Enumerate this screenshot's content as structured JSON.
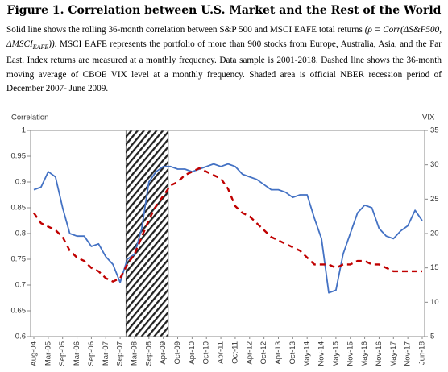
{
  "title": "Figure 1.  Correlation between U.S. Market and the Rest of the World",
  "caption": [
    "Solid line shows the rolling 36-month correlation between S&P 500 and MSCI EAFE total returns ",
    "(ρ = Corr(ΔS&P500, ΔMSCI",
    "EAFE",
    "))",
    ".  MSCI EAFE represents the portfolio of more than 900 stocks from Europe, Australia, Asia, and the Far East. Index returns are measured at a monthly frequency. Data sample is 2001-2018.  Dashed line shows the 36-month moving average of CBOE VIX level at a monthly frequency. Shaded area is official NBER recession period of December 2007- June 2009."
  ],
  "chart_data": {
    "type": "line",
    "ylabel": "Correlation",
    "y2label": "VIX",
    "categories": [
      "Aug-04",
      null,
      "Mar-05",
      null,
      "Sep-05",
      null,
      "Mar-06",
      null,
      "Sep-06",
      null,
      "Mar-07",
      null,
      "Sep-07",
      null,
      "Mar-08",
      null,
      "Sep-08",
      null,
      "Apr-09",
      null,
      "Oct-09",
      null,
      "Apr-10",
      null,
      "Oct-10",
      null,
      "Apr-11",
      null,
      "Oct-11",
      null,
      "Apr-12",
      null,
      "Oct-12",
      null,
      "Apr-13",
      null,
      "Oct-13",
      null,
      "May-14",
      null,
      "Nov-14",
      null,
      "May-15",
      null,
      "Nov-15",
      null,
      "May-16",
      null,
      "Nov-16",
      null,
      "May-17",
      null,
      "Nov-17",
      null,
      "Jun-18"
    ],
    "series": [
      {
        "color": "#4472c4",
        "axis": "y",
        "dashed": false,
        "values": [
          0.885,
          0.89,
          0.92,
          0.91,
          0.85,
          0.8,
          0.795,
          0.795,
          0.775,
          0.78,
          0.755,
          0.74,
          0.705,
          0.75,
          0.76,
          0.81,
          0.9,
          0.92,
          0.93,
          0.93,
          0.925,
          0.925,
          0.92,
          0.925,
          0.93,
          0.935,
          0.93,
          0.935,
          0.93,
          0.915,
          0.91,
          0.905,
          0.895,
          0.885,
          0.885,
          0.88,
          0.87,
          0.875,
          0.875,
          0.83,
          0.79,
          0.685,
          0.69,
          0.76,
          0.8,
          0.84,
          0.855,
          0.85,
          0.81,
          0.795,
          0.79,
          0.805,
          0.815,
          0.845,
          0.825
        ]
      },
      {
        "color": "#c00000",
        "axis": "y2",
        "dashed": true,
        "values": [
          23,
          21.5,
          21,
          20.5,
          19.5,
          17.5,
          16.5,
          16,
          15,
          14.5,
          13.5,
          13,
          13.5,
          15.5,
          17,
          19.5,
          22,
          24,
          25.5,
          27,
          27.5,
          28.5,
          29,
          29.5,
          29,
          28.5,
          28,
          26.5,
          24,
          23,
          22.5,
          21.5,
          20.5,
          19.5,
          19,
          18.5,
          18,
          17.5,
          16.5,
          15.5,
          15.5,
          15.5,
          15,
          15.5,
          15.5,
          16,
          16,
          15.5,
          15.5,
          15,
          14.5,
          14.5,
          14.5,
          14.5,
          14.5
        ]
      }
    ],
    "recession": [
      12.8,
      18.7
    ],
    "ylim": [
      0.6,
      1
    ],
    "yticks": [
      0.6,
      0.65,
      0.7,
      0.75,
      0.8,
      0.85,
      0.9,
      0.95,
      1
    ],
    "y2lim": [
      5,
      35
    ],
    "y2ticks": [
      5,
      10,
      15,
      20,
      25,
      30,
      35
    ]
  }
}
